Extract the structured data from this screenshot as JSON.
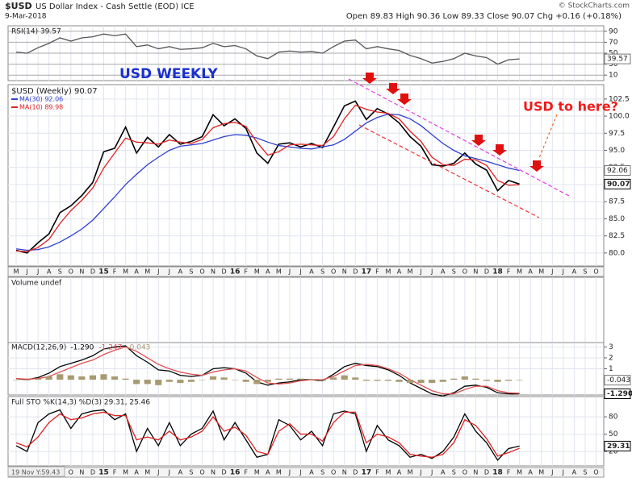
{
  "header": {
    "symbol": "$USD",
    "description": "US Dollar Index - Cash Settle (EOD) ICE",
    "date": "9-Mar-2018",
    "quote": "Open 89.83  High 90.36  Low 89.33  Close 90.07  Chg +0.16 (+0.18%)",
    "credit": "© StockCharts.com",
    "cursor_readout": "19 Nov Y:59.43"
  },
  "chart_data": [
    {
      "type": "line",
      "title": "RSI(14) 39.57",
      "ylim": [
        0,
        100
      ],
      "yticks": [
        90,
        70,
        50,
        30,
        10
      ],
      "x": [
        0,
        1,
        2,
        3,
        4,
        5,
        6,
        7,
        8,
        9,
        10,
        11,
        12,
        13,
        14,
        15,
        16,
        17,
        18,
        19,
        20,
        21,
        22,
        23,
        24,
        25,
        26,
        27,
        28,
        29,
        30,
        31,
        32,
        33,
        34,
        35,
        36,
        37,
        38,
        39,
        40,
        41,
        42,
        43,
        44,
        45,
        46
      ],
      "series": [
        {
          "color": "#555555",
          "last_label": "39.57",
          "values": [
            52,
            50,
            60,
            68,
            78,
            72,
            78,
            80,
            85,
            82,
            85,
            62,
            65,
            58,
            62,
            57,
            58,
            60,
            68,
            62,
            64,
            58,
            45,
            40,
            52,
            54,
            52,
            53,
            50,
            62,
            72,
            74,
            58,
            62,
            58,
            55,
            46,
            40,
            32,
            35,
            40,
            50,
            45,
            42,
            30,
            38,
            39.57
          ]
        }
      ]
    },
    {
      "type": "line",
      "title": "USD WEEKLY",
      "annotation": "USD to here?",
      "ylim": [
        78.1,
        104.6
      ],
      "yticks": [
        {
          "value": 80,
          "label": "80.0"
        },
        82.5,
        {
          "value": 85,
          "label": "85.0"
        },
        87.5,
        {
          "value": 90,
          "label": "90.0"
        },
        92.5,
        {
          "value": 95,
          "label": "95.0"
        },
        97.5,
        {
          "value": 100,
          "label": "100.0"
        },
        102.5
      ],
      "xlim": [
        -0.74,
        53.7
      ],
      "xticks": [
        {
          "value": 0,
          "label": "M"
        },
        {
          "value": 1,
          "label": "J"
        },
        {
          "value": 2,
          "label": "J"
        },
        {
          "value": 3,
          "label": "A"
        },
        {
          "value": 4,
          "label": "S"
        },
        {
          "value": 5,
          "label": "O"
        },
        {
          "value": 6,
          "label": "N"
        },
        {
          "value": 7,
          "label": "D"
        },
        {
          "value": 8,
          "label": "15"
        },
        {
          "value": 9,
          "label": "F"
        },
        {
          "value": 10,
          "label": "M"
        },
        {
          "value": 11,
          "label": "A"
        },
        {
          "value": 12,
          "label": "M"
        },
        {
          "value": 13,
          "label": "J"
        },
        {
          "value": 14,
          "label": "J"
        },
        {
          "value": 15,
          "label": "A"
        },
        {
          "value": 16,
          "label": "S"
        },
        {
          "value": 17,
          "label": "O"
        },
        {
          "value": 18,
          "label": "N"
        },
        {
          "value": 19,
          "label": "D"
        },
        {
          "value": 20,
          "label": "16"
        },
        {
          "value": 21,
          "label": "F"
        },
        {
          "value": 22,
          "label": "M"
        },
        {
          "value": 23,
          "label": "A"
        },
        {
          "value": 24,
          "label": "M"
        },
        {
          "value": 25,
          "label": "J"
        },
        {
          "value": 26,
          "label": "J"
        },
        {
          "value": 27,
          "label": "A"
        },
        {
          "value": 28,
          "label": "S"
        },
        {
          "value": 29,
          "label": "O"
        },
        {
          "value": 30,
          "label": "N"
        },
        {
          "value": 31,
          "label": "D"
        },
        {
          "value": 32,
          "label": "17"
        },
        {
          "value": 33,
          "label": "F"
        },
        {
          "value": 34,
          "label": "M"
        },
        {
          "value": 35,
          "label": "A"
        },
        {
          "value": 36,
          "label": "M"
        },
        {
          "value": 37,
          "label": "J"
        },
        {
          "value": 38,
          "label": "J"
        },
        {
          "value": 39,
          "label": "A"
        },
        {
          "value": 40,
          "label": "S"
        },
        {
          "value": 41,
          "label": "O"
        },
        {
          "value": 42,
          "label": "N"
        },
        {
          "value": 43,
          "label": "D"
        },
        {
          "value": 44,
          "label": "18"
        },
        {
          "value": 45,
          "label": "F"
        },
        {
          "value": 46,
          "label": "M"
        },
        {
          "value": 47,
          "label": "A"
        },
        {
          "value": 48,
          "label": "M"
        },
        {
          "value": 49,
          "label": "J"
        },
        {
          "value": 50,
          "label": "J"
        },
        {
          "value": 51,
          "label": "A"
        },
        {
          "value": 52,
          "label": "S"
        },
        {
          "value": 53,
          "label": "O"
        }
      ],
      "x": [
        0,
        1,
        2,
        3,
        4,
        5,
        6,
        7,
        8,
        9,
        10,
        11,
        12,
        13,
        14,
        15,
        16,
        17,
        18,
        19,
        20,
        21,
        22,
        23,
        24,
        25,
        26,
        27,
        28,
        29,
        30,
        31,
        32,
        33,
        34,
        35,
        36,
        37,
        38,
        39,
        40,
        41,
        42,
        43,
        44,
        45,
        46
      ],
      "series": [
        {
          "name": "$USD (Weekly) 90.07",
          "color": "#000000",
          "last_label": "90.07",
          "values": [
            80.4,
            80.0,
            81.5,
            82.8,
            85.9,
            86.9,
            88.4,
            90.3,
            94.8,
            95.3,
            98.4,
            94.6,
            96.9,
            95.5,
            97.3,
            95.9,
            96.3,
            97.0,
            100.2,
            98.6,
            99.6,
            98.2,
            94.6,
            93.1,
            95.9,
            96.1,
            95.5,
            96.0,
            95.4,
            98.4,
            101.5,
            102.2,
            99.5,
            101.1,
            100.3,
            99.0,
            97.0,
            95.6,
            92.9,
            92.7,
            93.1,
            94.6,
            93.0,
            92.1,
            89.1,
            90.6,
            90.07
          ]
        },
        {
          "name": "MA(30) 92.06",
          "color": "#2f3fcc",
          "last_label": "92.06",
          "values": [
            80.6,
            80.4,
            80.5,
            80.9,
            81.6,
            82.5,
            83.5,
            84.8,
            86.5,
            88.2,
            90.0,
            91.5,
            92.9,
            94.0,
            95.0,
            95.6,
            95.8,
            96.0,
            96.5,
            97.0,
            97.3,
            97.2,
            96.8,
            96.2,
            95.7,
            95.5,
            95.3,
            95.2,
            95.5,
            95.8,
            96.6,
            97.8,
            99.0,
            99.8,
            100.3,
            100.2,
            99.6,
            98.6,
            97.3,
            96.0,
            95.0,
            94.2,
            93.8,
            93.4,
            92.9,
            92.4,
            92.06
          ]
        },
        {
          "name": "MA(10) 89.98",
          "color": "#dd2222",
          "values": [
            80.3,
            80.2,
            80.8,
            82.0,
            84.3,
            86.2,
            87.7,
            89.5,
            92.4,
            94.6,
            96.8,
            96.2,
            96.1,
            95.9,
            96.5,
            96.2,
            96.0,
            96.6,
            98.3,
            98.9,
            99.1,
            98.5,
            96.2,
            94.3,
            94.8,
            95.8,
            95.9,
            95.8,
            95.7,
            97.0,
            99.6,
            101.6,
            101.0,
            100.6,
            100.4,
            99.6,
            97.8,
            96.3,
            94.0,
            92.9,
            92.8,
            93.7,
            93.6,
            92.8,
            90.6,
            89.9,
            89.98
          ]
        }
      ]
    },
    {
      "type": "line",
      "title": "Volume undef"
    },
    {
      "type": "line",
      "title": "MACD(12,26,9)",
      "ylim": [
        -1.4,
        3.4
      ],
      "yticks": [
        3,
        2,
        1
      ],
      "x": [
        0,
        1,
        2,
        3,
        4,
        5,
        6,
        7,
        8,
        9,
        10,
        11,
        12,
        13,
        14,
        15,
        16,
        17,
        18,
        19,
        20,
        21,
        22,
        23,
        24,
        25,
        26,
        27,
        28,
        29,
        30,
        31,
        32,
        33,
        34,
        35,
        36,
        37,
        38,
        39,
        40,
        41,
        42,
        43,
        44,
        45,
        46
      ],
      "series": [
        {
          "name": "-1.290",
          "color": "#000000",
          "last_label": "-1.290",
          "values": [
            0.1,
            0.0,
            0.2,
            0.6,
            1.2,
            1.5,
            1.8,
            2.2,
            2.8,
            3.0,
            3.1,
            2.2,
            1.6,
            0.9,
            0.8,
            0.4,
            0.3,
            0.4,
            1.0,
            1.1,
            1.0,
            0.6,
            -0.2,
            -0.5,
            -0.3,
            -0.2,
            0.0,
            0.0,
            -0.1,
            0.5,
            1.2,
            1.5,
            1.3,
            1.2,
            0.9,
            0.4,
            -0.3,
            -0.8,
            -1.3,
            -1.5,
            -1.2,
            -0.6,
            -0.5,
            -0.7,
            -1.2,
            -1.3,
            -1.29
          ]
        },
        {
          "name": "-1.247",
          "color": "#e05050",
          "values": [
            0.1,
            0.05,
            0.1,
            0.3,
            0.7,
            1.1,
            1.5,
            1.8,
            2.3,
            2.7,
            3.0,
            2.6,
            2.0,
            1.4,
            1.0,
            0.7,
            0.5,
            0.4,
            0.7,
            0.9,
            1.0,
            0.8,
            0.2,
            -0.3,
            -0.4,
            -0.3,
            -0.1,
            0.0,
            0.0,
            0.3,
            0.8,
            1.3,
            1.4,
            1.3,
            1.0,
            0.6,
            0.0,
            -0.5,
            -1.0,
            -1.3,
            -1.3,
            -0.9,
            -0.6,
            -0.6,
            -1.0,
            -1.2,
            -1.247
          ]
        },
        {
          "name": "-0.043",
          "color": "#a89a70",
          "style": "bar",
          "last_label": "-0.043",
          "values": [
            0,
            -0.05,
            0.1,
            0.3,
            0.5,
            0.4,
            0.3,
            0.4,
            0.5,
            0.3,
            0.1,
            -0.4,
            -0.4,
            -0.5,
            -0.2,
            -0.3,
            -0.2,
            0,
            0.3,
            0.2,
            0,
            -0.2,
            -0.4,
            -0.2,
            0.1,
            0.1,
            0.1,
            0,
            -0.1,
            0.2,
            0.4,
            0.2,
            -0.1,
            -0.1,
            -0.1,
            -0.2,
            -0.3,
            -0.3,
            -0.3,
            -0.2,
            0.1,
            0.3,
            0.1,
            -0.1,
            -0.2,
            -0.1,
            -0.043
          ]
        }
      ]
    },
    {
      "type": "line",
      "title": "Full STO %K(14,3) %D(3) 29.31, 25.46",
      "ylim": [
        -5,
        115
      ],
      "yticks": [
        80,
        50,
        20
      ],
      "x": [
        0,
        1,
        2,
        3,
        4,
        5,
        6,
        7,
        8,
        9,
        10,
        11,
        12,
        13,
        14,
        15,
        16,
        17,
        18,
        19,
        20,
        21,
        22,
        23,
        24,
        25,
        26,
        27,
        28,
        29,
        30,
        31,
        32,
        33,
        34,
        35,
        36,
        37,
        38,
        39,
        40,
        41,
        42,
        43,
        44,
        45,
        46
      ],
      "series": [
        {
          "color": "#000000",
          "last_label": "29.31",
          "values": [
            30,
            20,
            70,
            85,
            92,
            60,
            85,
            90,
            92,
            75,
            85,
            20,
            60,
            30,
            70,
            30,
            50,
            60,
            90,
            40,
            70,
            40,
            10,
            15,
            75,
            65,
            40,
            55,
            30,
            85,
            90,
            85,
            20,
            65,
            40,
            30,
            10,
            15,
            8,
            20,
            45,
            85,
            55,
            35,
            5,
            25,
            29.31
          ]
        },
        {
          "color": "#dd2222",
          "values": [
            35,
            28,
            45,
            70,
            85,
            75,
            78,
            85,
            88,
            82,
            82,
            40,
            45,
            40,
            55,
            40,
            45,
            55,
            80,
            55,
            62,
            48,
            20,
            15,
            55,
            68,
            50,
            50,
            38,
            70,
            88,
            88,
            35,
            50,
            45,
            35,
            15,
            12,
            10,
            15,
            35,
            75,
            65,
            42,
            12,
            18,
            25.46
          ]
        }
      ]
    }
  ]
}
